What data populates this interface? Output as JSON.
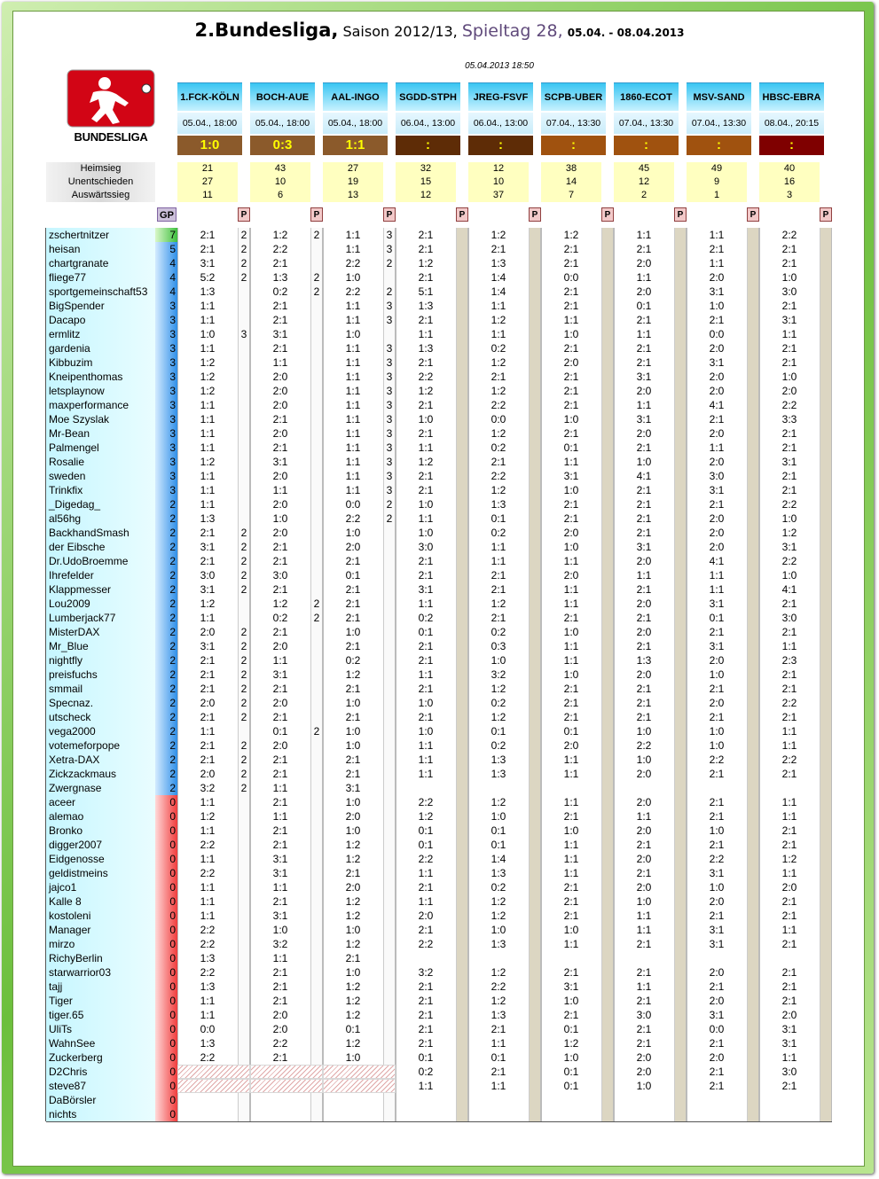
{
  "header": {
    "title": "2.Bundesliga,",
    "season": "Saison 2012/13,",
    "matchday": "Spieltag 28,",
    "dates": "05.04. - 08.04.2013",
    "timestamp": "05.04.2013 18:50",
    "logo_text": "BUNDESLIGA"
  },
  "stats_labels": [
    "Heimsieg",
    "Unentschieden",
    "Auswärtssieg"
  ],
  "gp_label": "GP",
  "p_label": "P",
  "matches": [
    {
      "name": "1.FCK-KÖLN",
      "date": "05.04., 18:00",
      "result": "1:0",
      "color": "#8b5a2b",
      "stats": [
        21,
        27,
        11
      ]
    },
    {
      "name": "BOCH-AUE",
      "date": "05.04., 18:00",
      "result": "0:3",
      "color": "#8b5a2b",
      "stats": [
        43,
        10,
        6
      ]
    },
    {
      "name": "AAL-INGO",
      "date": "05.04., 18:00",
      "result": "1:1",
      "color": "#8b5a2b",
      "stats": [
        27,
        19,
        13
      ]
    },
    {
      "name": "SGDD-STPH",
      "date": "06.04., 13:00",
      "result": ":",
      "color": "#5e2c06",
      "stats": [
        32,
        15,
        12
      ]
    },
    {
      "name": "JREG-FSVF",
      "date": "06.04., 13:00",
      "result": ":",
      "color": "#5e2c06",
      "stats": [
        12,
        10,
        37
      ]
    },
    {
      "name": "SCPB-UBER",
      "date": "07.04., 13:30",
      "result": ":",
      "color": "#a0520f",
      "stats": [
        38,
        14,
        7
      ]
    },
    {
      "name": "1860-ECOT",
      "date": "07.04., 13:30",
      "result": ":",
      "color": "#a0520f",
      "stats": [
        45,
        12,
        2
      ]
    },
    {
      "name": "MSV-SAND",
      "date": "07.04., 13:30",
      "result": ":",
      "color": "#a0520f",
      "stats": [
        49,
        9,
        1
      ]
    },
    {
      "name": "HBSC-EBRA",
      "date": "08.04., 20:15",
      "result": ":",
      "color": "#7f0000",
      "stats": [
        40,
        16,
        3
      ]
    }
  ],
  "players": [
    {
      "name": "zschertnitzer",
      "gp": 7,
      "tips": [
        "2:1",
        "1:2",
        "1:1",
        "2:1",
        "1:2",
        "1:2",
        "1:1",
        "1:1",
        "2:2"
      ],
      "points": [
        2,
        2,
        3
      ]
    },
    {
      "name": "heisan",
      "gp": 5,
      "tips": [
        "2:1",
        "2:2",
        "1:1",
        "2:1",
        "2:1",
        "2:1",
        "2:1",
        "2:1",
        "2:1"
      ],
      "points": [
        2,
        null,
        3
      ]
    },
    {
      "name": "chartgranate",
      "gp": 4,
      "tips": [
        "3:1",
        "2:1",
        "2:2",
        "1:2",
        "1:3",
        "2:1",
        "2:0",
        "1:1",
        "2:1"
      ],
      "points": [
        2,
        null,
        2
      ]
    },
    {
      "name": "fliege77",
      "gp": 4,
      "tips": [
        "5:2",
        "1:3",
        "1:0",
        "2:1",
        "1:4",
        "0:0",
        "1:1",
        "2:0",
        "1:0"
      ],
      "points": [
        2,
        2,
        null
      ]
    },
    {
      "name": "sportgemeinschaft53",
      "gp": 4,
      "tips": [
        "1:3",
        "0:2",
        "2:2",
        "5:1",
        "1:4",
        "2:1",
        "2:0",
        "3:1",
        "3:0"
      ],
      "points": [
        null,
        2,
        2
      ]
    },
    {
      "name": "BigSpender",
      "gp": 3,
      "tips": [
        "1:1",
        "2:1",
        "1:1",
        "1:3",
        "1:1",
        "2:1",
        "0:1",
        "1:0",
        "2:1"
      ],
      "points": [
        null,
        null,
        3
      ]
    },
    {
      "name": "Dacapo",
      "gp": 3,
      "tips": [
        "1:1",
        "2:1",
        "1:1",
        "2:1",
        "1:2",
        "1:1",
        "2:1",
        "2:1",
        "3:1"
      ],
      "points": [
        null,
        null,
        3
      ]
    },
    {
      "name": "ermlitz",
      "gp": 3,
      "tips": [
        "1:0",
        "3:1",
        "1:0",
        "1:1",
        "1:1",
        "1:0",
        "1:1",
        "0:0",
        "1:1"
      ],
      "points": [
        3,
        null,
        null
      ]
    },
    {
      "name": "gardenia",
      "gp": 3,
      "tips": [
        "1:1",
        "2:1",
        "1:1",
        "1:3",
        "0:2",
        "2:1",
        "2:1",
        "2:0",
        "2:1"
      ],
      "points": [
        null,
        null,
        3
      ]
    },
    {
      "name": "Kibbuzim",
      "gp": 3,
      "tips": [
        "1:2",
        "1:1",
        "1:1",
        "2:1",
        "1:2",
        "2:0",
        "2:1",
        "3:1",
        "2:1"
      ],
      "points": [
        null,
        null,
        3
      ]
    },
    {
      "name": "Kneipenthomas",
      "gp": 3,
      "tips": [
        "1:2",
        "2:0",
        "1:1",
        "2:2",
        "2:1",
        "2:1",
        "3:1",
        "2:0",
        "1:0"
      ],
      "points": [
        null,
        null,
        3
      ]
    },
    {
      "name": "letsplaynow",
      "gp": 3,
      "tips": [
        "1:2",
        "2:0",
        "1:1",
        "1:2",
        "1:2",
        "2:1",
        "2:0",
        "2:0",
        "2:0"
      ],
      "points": [
        null,
        null,
        3
      ]
    },
    {
      "name": "maxperformance",
      "gp": 3,
      "tips": [
        "1:1",
        "2:0",
        "1:1",
        "2:1",
        "2:2",
        "2:1",
        "1:1",
        "4:1",
        "2:2"
      ],
      "points": [
        null,
        null,
        3
      ]
    },
    {
      "name": "Moe Szyslak",
      "gp": 3,
      "tips": [
        "1:1",
        "2:1",
        "1:1",
        "1:0",
        "0:0",
        "1:0",
        "3:1",
        "2:1",
        "3:3"
      ],
      "points": [
        null,
        null,
        3
      ]
    },
    {
      "name": "Mr-Bean",
      "gp": 3,
      "tips": [
        "1:1",
        "2:0",
        "1:1",
        "2:1",
        "1:2",
        "2:1",
        "2:0",
        "2:0",
        "2:1"
      ],
      "points": [
        null,
        null,
        3
      ]
    },
    {
      "name": "Palmengel",
      "gp": 3,
      "tips": [
        "1:1",
        "2:1",
        "1:1",
        "1:1",
        "0:2",
        "0:1",
        "2:1",
        "1:1",
        "2:1"
      ],
      "points": [
        null,
        null,
        3
      ]
    },
    {
      "name": "Rosalie",
      "gp": 3,
      "tips": [
        "1:2",
        "3:1",
        "1:1",
        "1:2",
        "2:1",
        "1:1",
        "1:0",
        "2:0",
        "3:1"
      ],
      "points": [
        null,
        null,
        3
      ]
    },
    {
      "name": "sweden",
      "gp": 3,
      "tips": [
        "1:1",
        "2:0",
        "1:1",
        "2:1",
        "2:2",
        "3:1",
        "4:1",
        "3:0",
        "2:1"
      ],
      "points": [
        null,
        null,
        3
      ]
    },
    {
      "name": "Trinkfix",
      "gp": 3,
      "tips": [
        "1:1",
        "1:1",
        "1:1",
        "2:1",
        "1:2",
        "1:0",
        "2:1",
        "3:1",
        "2:1"
      ],
      "points": [
        null,
        null,
        3
      ]
    },
    {
      "name": "_Digedag_",
      "gp": 2,
      "tips": [
        "1:1",
        "2:0",
        "0:0",
        "1:0",
        "1:3",
        "2:1",
        "2:1",
        "2:1",
        "2:2"
      ],
      "points": [
        null,
        null,
        2
      ]
    },
    {
      "name": "al56hg",
      "gp": 2,
      "tips": [
        "1:3",
        "1:0",
        "2:2",
        "1:1",
        "0:1",
        "2:1",
        "2:1",
        "2:0",
        "1:0"
      ],
      "points": [
        null,
        null,
        2
      ]
    },
    {
      "name": "BackhandSmash",
      "gp": 2,
      "tips": [
        "2:1",
        "2:0",
        "1:0",
        "1:0",
        "0:2",
        "2:0",
        "2:1",
        "2:0",
        "1:2"
      ],
      "points": [
        2,
        null,
        null
      ]
    },
    {
      "name": "der Eibsche",
      "gp": 2,
      "tips": [
        "3:1",
        "2:1",
        "2:0",
        "3:0",
        "1:1",
        "1:0",
        "3:1",
        "2:0",
        "3:1"
      ],
      "points": [
        2,
        null,
        null
      ]
    },
    {
      "name": "Dr.UdoBroemme",
      "gp": 2,
      "tips": [
        "2:1",
        "2:1",
        "2:1",
        "2:1",
        "1:1",
        "1:1",
        "2:0",
        "4:1",
        "2:2"
      ],
      "points": [
        2,
        null,
        null
      ]
    },
    {
      "name": "Ihrefelder",
      "gp": 2,
      "tips": [
        "3:0",
        "3:0",
        "0:1",
        "2:1",
        "2:1",
        "2:0",
        "1:1",
        "1:1",
        "1:0"
      ],
      "points": [
        2,
        null,
        null
      ]
    },
    {
      "name": "Klappmesser",
      "gp": 2,
      "tips": [
        "3:1",
        "2:1",
        "2:1",
        "3:1",
        "2:1",
        "1:1",
        "2:1",
        "1:1",
        "4:1"
      ],
      "points": [
        2,
        null,
        null
      ]
    },
    {
      "name": "Lou2009",
      "gp": 2,
      "tips": [
        "1:2",
        "1:2",
        "2:1",
        "1:1",
        "1:2",
        "1:1",
        "2:0",
        "3:1",
        "2:1"
      ],
      "points": [
        null,
        2,
        null
      ]
    },
    {
      "name": "Lumberjack77",
      "gp": 2,
      "tips": [
        "1:1",
        "0:2",
        "2:1",
        "0:2",
        "2:1",
        "2:1",
        "2:1",
        "0:1",
        "3:0"
      ],
      "points": [
        null,
        2,
        null
      ]
    },
    {
      "name": "MisterDAX",
      "gp": 2,
      "tips": [
        "2:0",
        "2:1",
        "1:0",
        "0:1",
        "0:2",
        "1:0",
        "2:0",
        "2:1",
        "2:1"
      ],
      "points": [
        2,
        null,
        null
      ]
    },
    {
      "name": "Mr_Blue",
      "gp": 2,
      "tips": [
        "3:1",
        "2:0",
        "2:1",
        "2:1",
        "0:3",
        "1:1",
        "2:1",
        "3:1",
        "1:1"
      ],
      "points": [
        2,
        null,
        null
      ]
    },
    {
      "name": "nightfly",
      "gp": 2,
      "tips": [
        "2:1",
        "1:1",
        "0:2",
        "2:1",
        "1:0",
        "1:1",
        "1:3",
        "2:0",
        "2:3"
      ],
      "points": [
        2,
        null,
        null
      ]
    },
    {
      "name": "preisfuchs",
      "gp": 2,
      "tips": [
        "2:1",
        "3:1",
        "1:2",
        "1:1",
        "3:2",
        "1:0",
        "2:0",
        "1:0",
        "2:1"
      ],
      "points": [
        2,
        null,
        null
      ]
    },
    {
      "name": "smmail",
      "gp": 2,
      "tips": [
        "2:1",
        "2:1",
        "2:1",
        "2:1",
        "1:2",
        "2:1",
        "2:1",
        "2:1",
        "2:1"
      ],
      "points": [
        2,
        null,
        null
      ]
    },
    {
      "name": "Specnaz.",
      "gp": 2,
      "tips": [
        "2:0",
        "2:0",
        "1:0",
        "1:0",
        "0:2",
        "2:1",
        "2:1",
        "2:0",
        "2:2"
      ],
      "points": [
        2,
        null,
        null
      ]
    },
    {
      "name": "utscheck",
      "gp": 2,
      "tips": [
        "2:1",
        "2:1",
        "2:1",
        "2:1",
        "1:2",
        "2:1",
        "2:1",
        "2:1",
        "2:1"
      ],
      "points": [
        2,
        null,
        null
      ]
    },
    {
      "name": "vega2000",
      "gp": 2,
      "tips": [
        "1:1",
        "0:1",
        "1:0",
        "1:0",
        "0:1",
        "0:1",
        "1:0",
        "1:0",
        "1:1"
      ],
      "points": [
        null,
        2,
        null
      ]
    },
    {
      "name": "votemeforpope",
      "gp": 2,
      "tips": [
        "2:1",
        "2:0",
        "1:0",
        "1:1",
        "0:2",
        "2:0",
        "2:2",
        "1:0",
        "1:1"
      ],
      "points": [
        2,
        null,
        null
      ]
    },
    {
      "name": "Xetra-DAX",
      "gp": 2,
      "tips": [
        "2:1",
        "2:1",
        "2:1",
        "1:1",
        "1:3",
        "1:1",
        "1:0",
        "2:2",
        "2:2"
      ],
      "points": [
        2,
        null,
        null
      ]
    },
    {
      "name": "Zickzackmaus",
      "gp": 2,
      "tips": [
        "2:0",
        "2:1",
        "2:1",
        "1:1",
        "1:3",
        "1:1",
        "2:0",
        "2:1",
        "2:1"
      ],
      "points": [
        2,
        null,
        null
      ]
    },
    {
      "name": "Zwergnase",
      "gp": 2,
      "tips": [
        "3:2",
        "1:1",
        "3:1",
        null,
        null,
        null,
        null,
        null,
        null
      ],
      "points": [
        2,
        null,
        null
      ]
    },
    {
      "name": "aceer",
      "gp": 0,
      "tips": [
        "1:1",
        "2:1",
        "1:0",
        "2:2",
        "1:2",
        "1:1",
        "2:0",
        "2:1",
        "1:1"
      ]
    },
    {
      "name": "alemao",
      "gp": 0,
      "tips": [
        "1:2",
        "1:1",
        "2:0",
        "1:2",
        "1:0",
        "2:1",
        "1:1",
        "2:1",
        "1:1"
      ]
    },
    {
      "name": "Bronko",
      "gp": 0,
      "tips": [
        "1:1",
        "2:1",
        "1:0",
        "0:1",
        "0:1",
        "1:0",
        "2:0",
        "1:0",
        "2:1"
      ]
    },
    {
      "name": "digger2007",
      "gp": 0,
      "tips": [
        "2:2",
        "2:1",
        "1:2",
        "0:1",
        "0:1",
        "1:1",
        "2:1",
        "2:1",
        "2:1"
      ]
    },
    {
      "name": "Eidgenosse",
      "gp": 0,
      "tips": [
        "1:1",
        "3:1",
        "1:2",
        "2:2",
        "1:4",
        "1:1",
        "2:0",
        "2:2",
        "1:2"
      ]
    },
    {
      "name": "geldistmeins",
      "gp": 0,
      "tips": [
        "2:2",
        "3:1",
        "2:1",
        "1:1",
        "1:3",
        "1:1",
        "2:1",
        "3:1",
        "1:1"
      ]
    },
    {
      "name": "jajco1",
      "gp": 0,
      "tips": [
        "1:1",
        "1:1",
        "2:0",
        "2:1",
        "0:2",
        "2:1",
        "2:0",
        "1:0",
        "2:0"
      ]
    },
    {
      "name": "Kalle 8",
      "gp": 0,
      "tips": [
        "1:1",
        "2:1",
        "1:2",
        "1:1",
        "1:2",
        "2:1",
        "1:0",
        "2:0",
        "2:1"
      ]
    },
    {
      "name": "kostoleni",
      "gp": 0,
      "tips": [
        "1:1",
        "3:1",
        "1:2",
        "2:0",
        "1:2",
        "2:1",
        "1:1",
        "2:1",
        "2:1"
      ]
    },
    {
      "name": "Manager",
      "gp": 0,
      "tips": [
        "2:2",
        "1:0",
        "1:0",
        "2:1",
        "1:0",
        "1:0",
        "1:1",
        "3:1",
        "1:1"
      ]
    },
    {
      "name": "mirzo",
      "gp": 0,
      "tips": [
        "2:2",
        "3:2",
        "1:2",
        "2:2",
        "1:3",
        "1:1",
        "2:1",
        "3:1",
        "2:1"
      ]
    },
    {
      "name": "RichyBerlin",
      "gp": 0,
      "tips": [
        "1:3",
        "1:1",
        "2:1",
        null,
        null,
        null,
        null,
        null,
        null
      ]
    },
    {
      "name": "starwarrior03",
      "gp": 0,
      "tips": [
        "2:2",
        "2:1",
        "1:0",
        "3:2",
        "1:2",
        "2:1",
        "2:1",
        "2:0",
        "2:1"
      ]
    },
    {
      "name": "tajj",
      "gp": 0,
      "tips": [
        "1:3",
        "2:1",
        "1:2",
        "2:1",
        "2:2",
        "3:1",
        "1:1",
        "2:1",
        "2:1"
      ]
    },
    {
      "name": "Tiger",
      "gp": 0,
      "tips": [
        "1:1",
        "2:1",
        "1:2",
        "2:1",
        "1:2",
        "1:0",
        "2:1",
        "2:0",
        "2:1"
      ]
    },
    {
      "name": "tiger.65",
      "gp": 0,
      "tips": [
        "1:1",
        "2:0",
        "1:2",
        "2:1",
        "1:3",
        "2:1",
        "3:0",
        "3:1",
        "2:0"
      ]
    },
    {
      "name": "UliTs",
      "gp": 0,
      "tips": [
        "0:0",
        "2:0",
        "0:1",
        "2:1",
        "2:1",
        "0:1",
        "2:1",
        "0:0",
        "3:1"
      ]
    },
    {
      "name": "WahnSee",
      "gp": 0,
      "tips": [
        "1:3",
        "2:2",
        "1:2",
        "2:1",
        "1:1",
        "1:2",
        "2:1",
        "2:1",
        "3:1"
      ]
    },
    {
      "name": "Zuckerberg",
      "gp": 0,
      "tips": [
        "2:2",
        "2:1",
        "1:0",
        "0:1",
        "0:1",
        "1:0",
        "2:0",
        "2:0",
        "1:1"
      ]
    },
    {
      "name": "D2Chris",
      "gp": 0,
      "hatched": true,
      "tips": [
        null,
        null,
        null,
        "0:2",
        "2:1",
        "0:1",
        "2:0",
        "2:1",
        "3:0"
      ]
    },
    {
      "name": "steve87",
      "gp": 0,
      "hatched": true,
      "tips": [
        null,
        null,
        null,
        "1:1",
        "1:1",
        "0:1",
        "1:0",
        "2:1",
        "2:1"
      ]
    },
    {
      "name": "DaBörsler",
      "gp": 0
    },
    {
      "name": "nichts",
      "gp": 0
    }
  ]
}
